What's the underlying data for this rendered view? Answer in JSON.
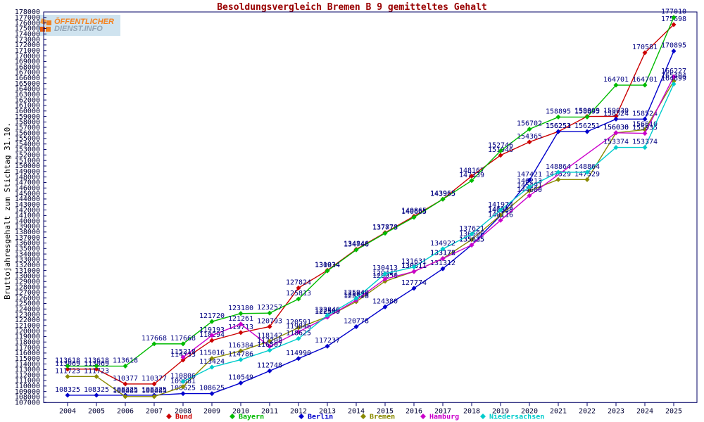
{
  "window": {
    "title": "Besoldungsvergleich Bremen B 9 gemitteltes Gehalt"
  },
  "logo": {
    "line1": "ÖFFENTLICHER",
    "line2": "DIENST.INFO"
  },
  "colors": {
    "title_text": "#990000",
    "frame": "#000066",
    "axis_tick_text": "#000033",
    "point_label_text": "#000080",
    "background": "#ffffff"
  },
  "chart_data": {
    "type": "line",
    "title": "Besoldungsvergleich Bremen B 9 gemitteltes Gehalt",
    "xlabel": "",
    "ylabel": "Bruttojahresgehalt zum Stichtag 31.10.",
    "ylim": [
      107000,
      178000
    ],
    "ytick_step": 1000,
    "grid": false,
    "legend_position": "bottom",
    "point_labels": true,
    "x": [
      2004,
      2005,
      2006,
      2007,
      2008,
      2009,
      2010,
      2011,
      2012,
      2013,
      2014,
      2015,
      2016,
      2017,
      2018,
      2019,
      2020,
      2021,
      2022,
      2023,
      2024,
      2025
    ],
    "series": [
      {
        "name": "Bund",
        "color": "#cc0000",
        "values": [
          113069,
          113069,
          110377,
          110377,
          114733,
          118294,
          119713,
          120793,
          127824,
          131034,
          134846,
          137878,
          140865,
          143965,
          148167,
          151946,
          154365,
          156253,
          159009,
          159030,
          170581,
          175698
        ]
      },
      {
        "name": "Bayern",
        "color": "#00bb00",
        "values": [
          113618,
          113618,
          113618,
          117668,
          117668,
          121720,
          123180,
          123257,
          125813,
          130934,
          134746,
          137773,
          140665,
          143955,
          147339,
          152746,
          156702,
          158895,
          158895,
          164701,
          164701,
          177010
        ]
      },
      {
        "name": "Berlin",
        "color": "#0000cc",
        "values": [
          108325,
          108325,
          108325,
          108325,
          108625,
          108625,
          110549,
          112748,
          114990,
          117237,
          120778,
          124380,
          127774,
          131312,
          135625,
          140988,
          147421,
          156251,
          156251,
          158524,
          158524,
          170895
        ]
      },
      {
        "name": "Bremen",
        "color": "#8a8a00",
        "values": [
          111723,
          111723,
          108085,
          108085,
          109881,
          115016,
          116384,
          118142,
          120591,
          122598,
          125328,
          129050,
          130811,
          133178,
          136606,
          141058,
          145491,
          147529,
          147529,
          156030,
          156610,
          165404
        ]
      },
      {
        "name": "Hamburg",
        "color": "#cc00cc",
        "values": [
          null,
          null,
          null,
          null,
          115218,
          119193,
          121261,
          117208,
          119846,
          122509,
          125628,
          129447,
          130811,
          133172,
          135635,
          140116,
          144600,
          null,
          null,
          156036,
          155935,
          166227
        ]
      },
      {
        "name": "Niedersachsen",
        "color": "#00cccc",
        "values": [
          null,
          null,
          null,
          null,
          110806,
          113424,
          114786,
          116507,
          118625,
          122846,
          125940,
          130413,
          131631,
          134922,
          137621,
          141974,
          146213,
          148864,
          148864,
          153374,
          153374,
          164899
        ]
      }
    ]
  }
}
